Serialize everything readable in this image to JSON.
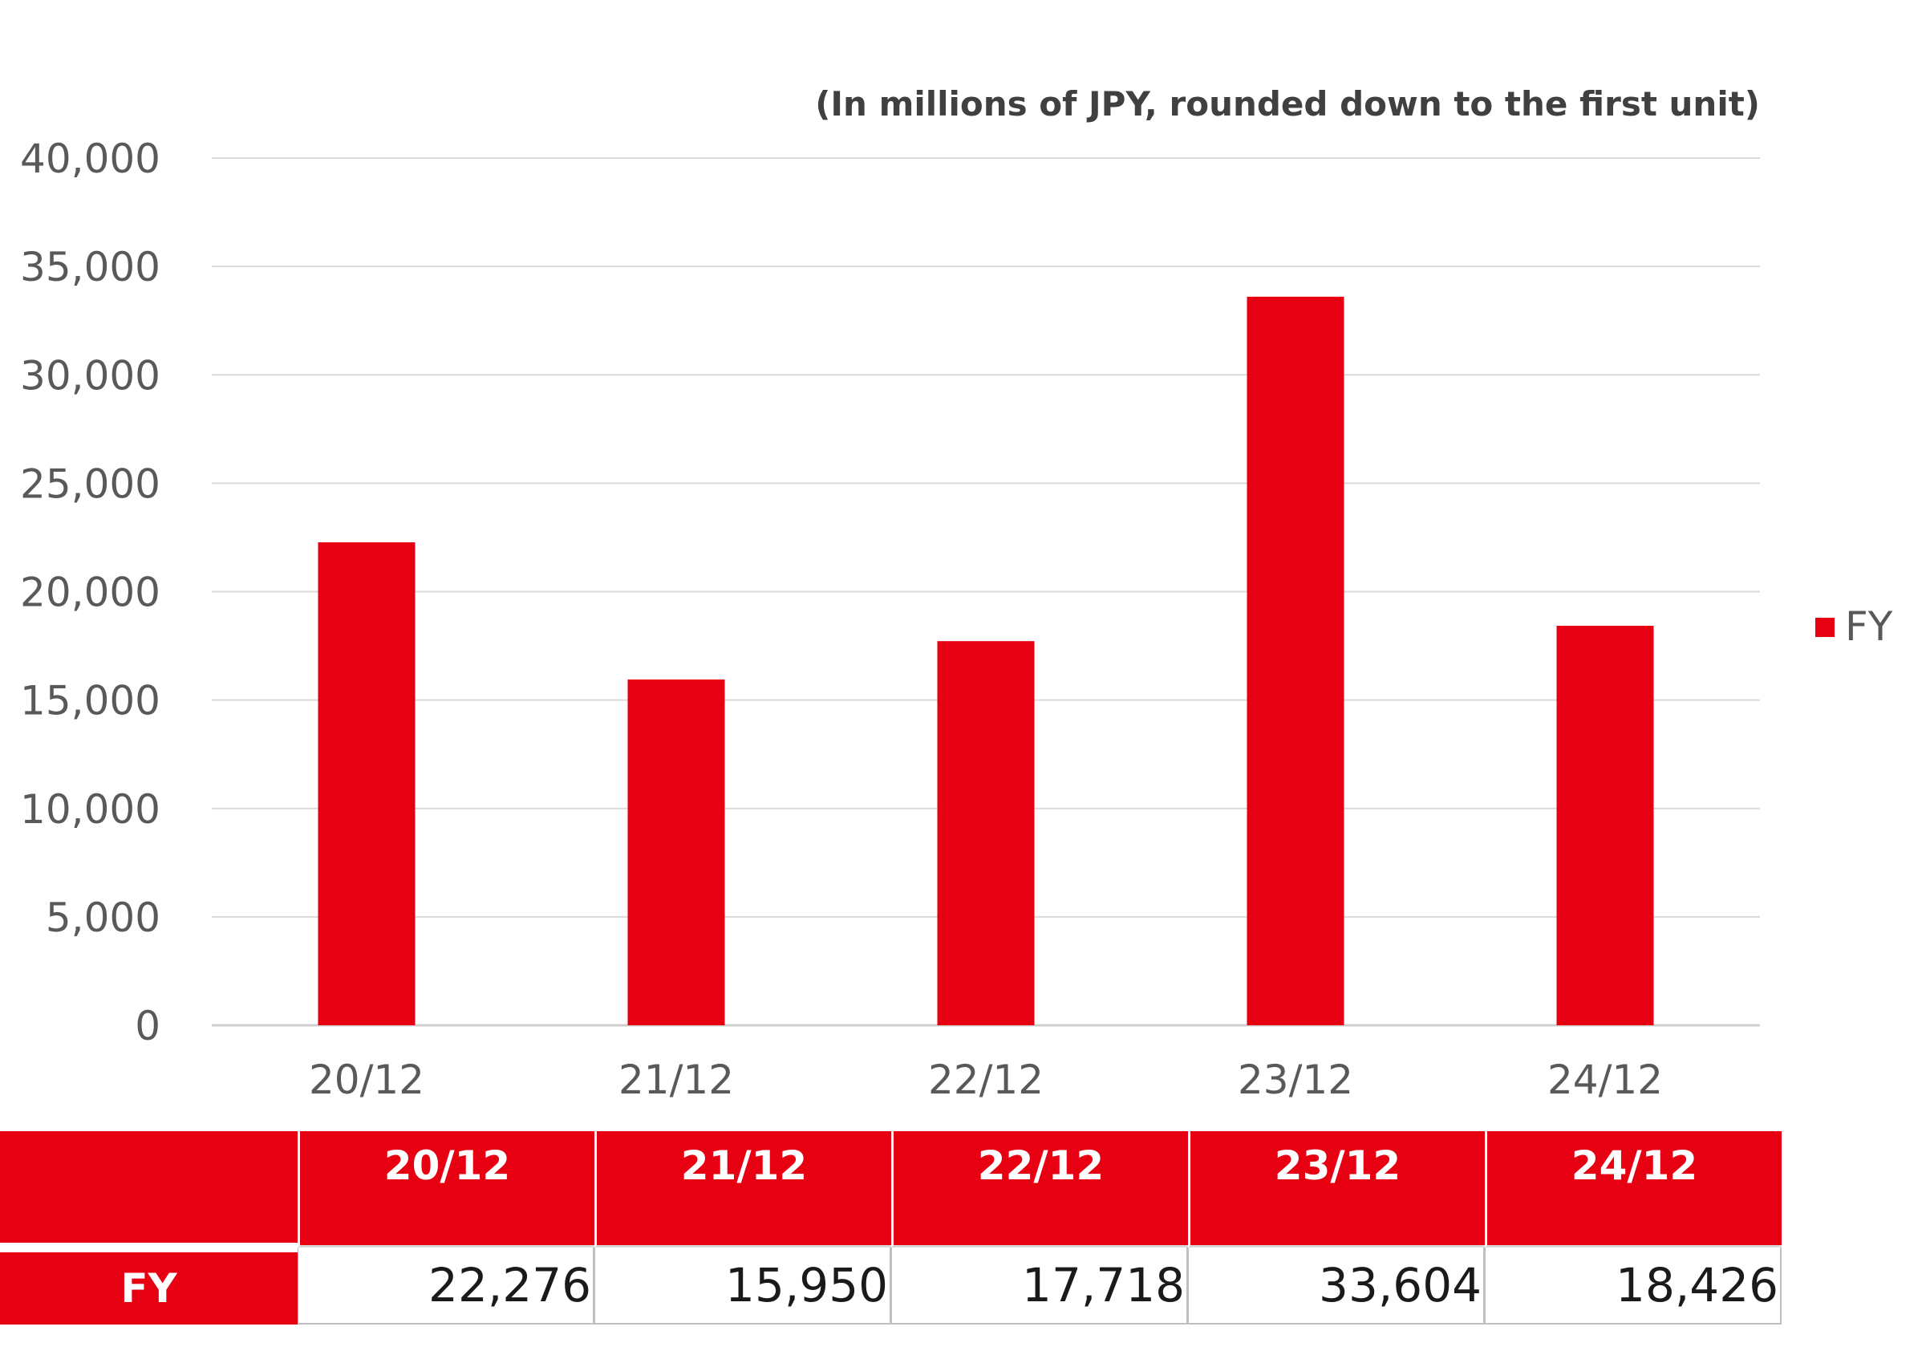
{
  "chart_data": {
    "type": "bar",
    "unit_note": "(In millions of JPY, rounded down to the first unit)",
    "categories": [
      "20/12",
      "21/12",
      "22/12",
      "23/12",
      "24/12"
    ],
    "series": [
      {
        "name": "FY",
        "values": [
          22276,
          15950,
          17718,
          33604,
          18426
        ]
      }
    ],
    "ylim": [
      0,
      40000
    ],
    "yticks": [
      "0",
      "5,000",
      "10,000",
      "15,000",
      "20,000",
      "25,000",
      "30,000",
      "35,000",
      "40,000"
    ],
    "grid": true,
    "legend": "right",
    "bar_color": "#e60012"
  },
  "table": {
    "columns": [
      "20/12",
      "21/12",
      "22/12",
      "23/12",
      "24/12"
    ],
    "row_label": "FY",
    "values": [
      "22,276",
      "15,950",
      "17,718",
      "33,604",
      "18,426"
    ]
  }
}
